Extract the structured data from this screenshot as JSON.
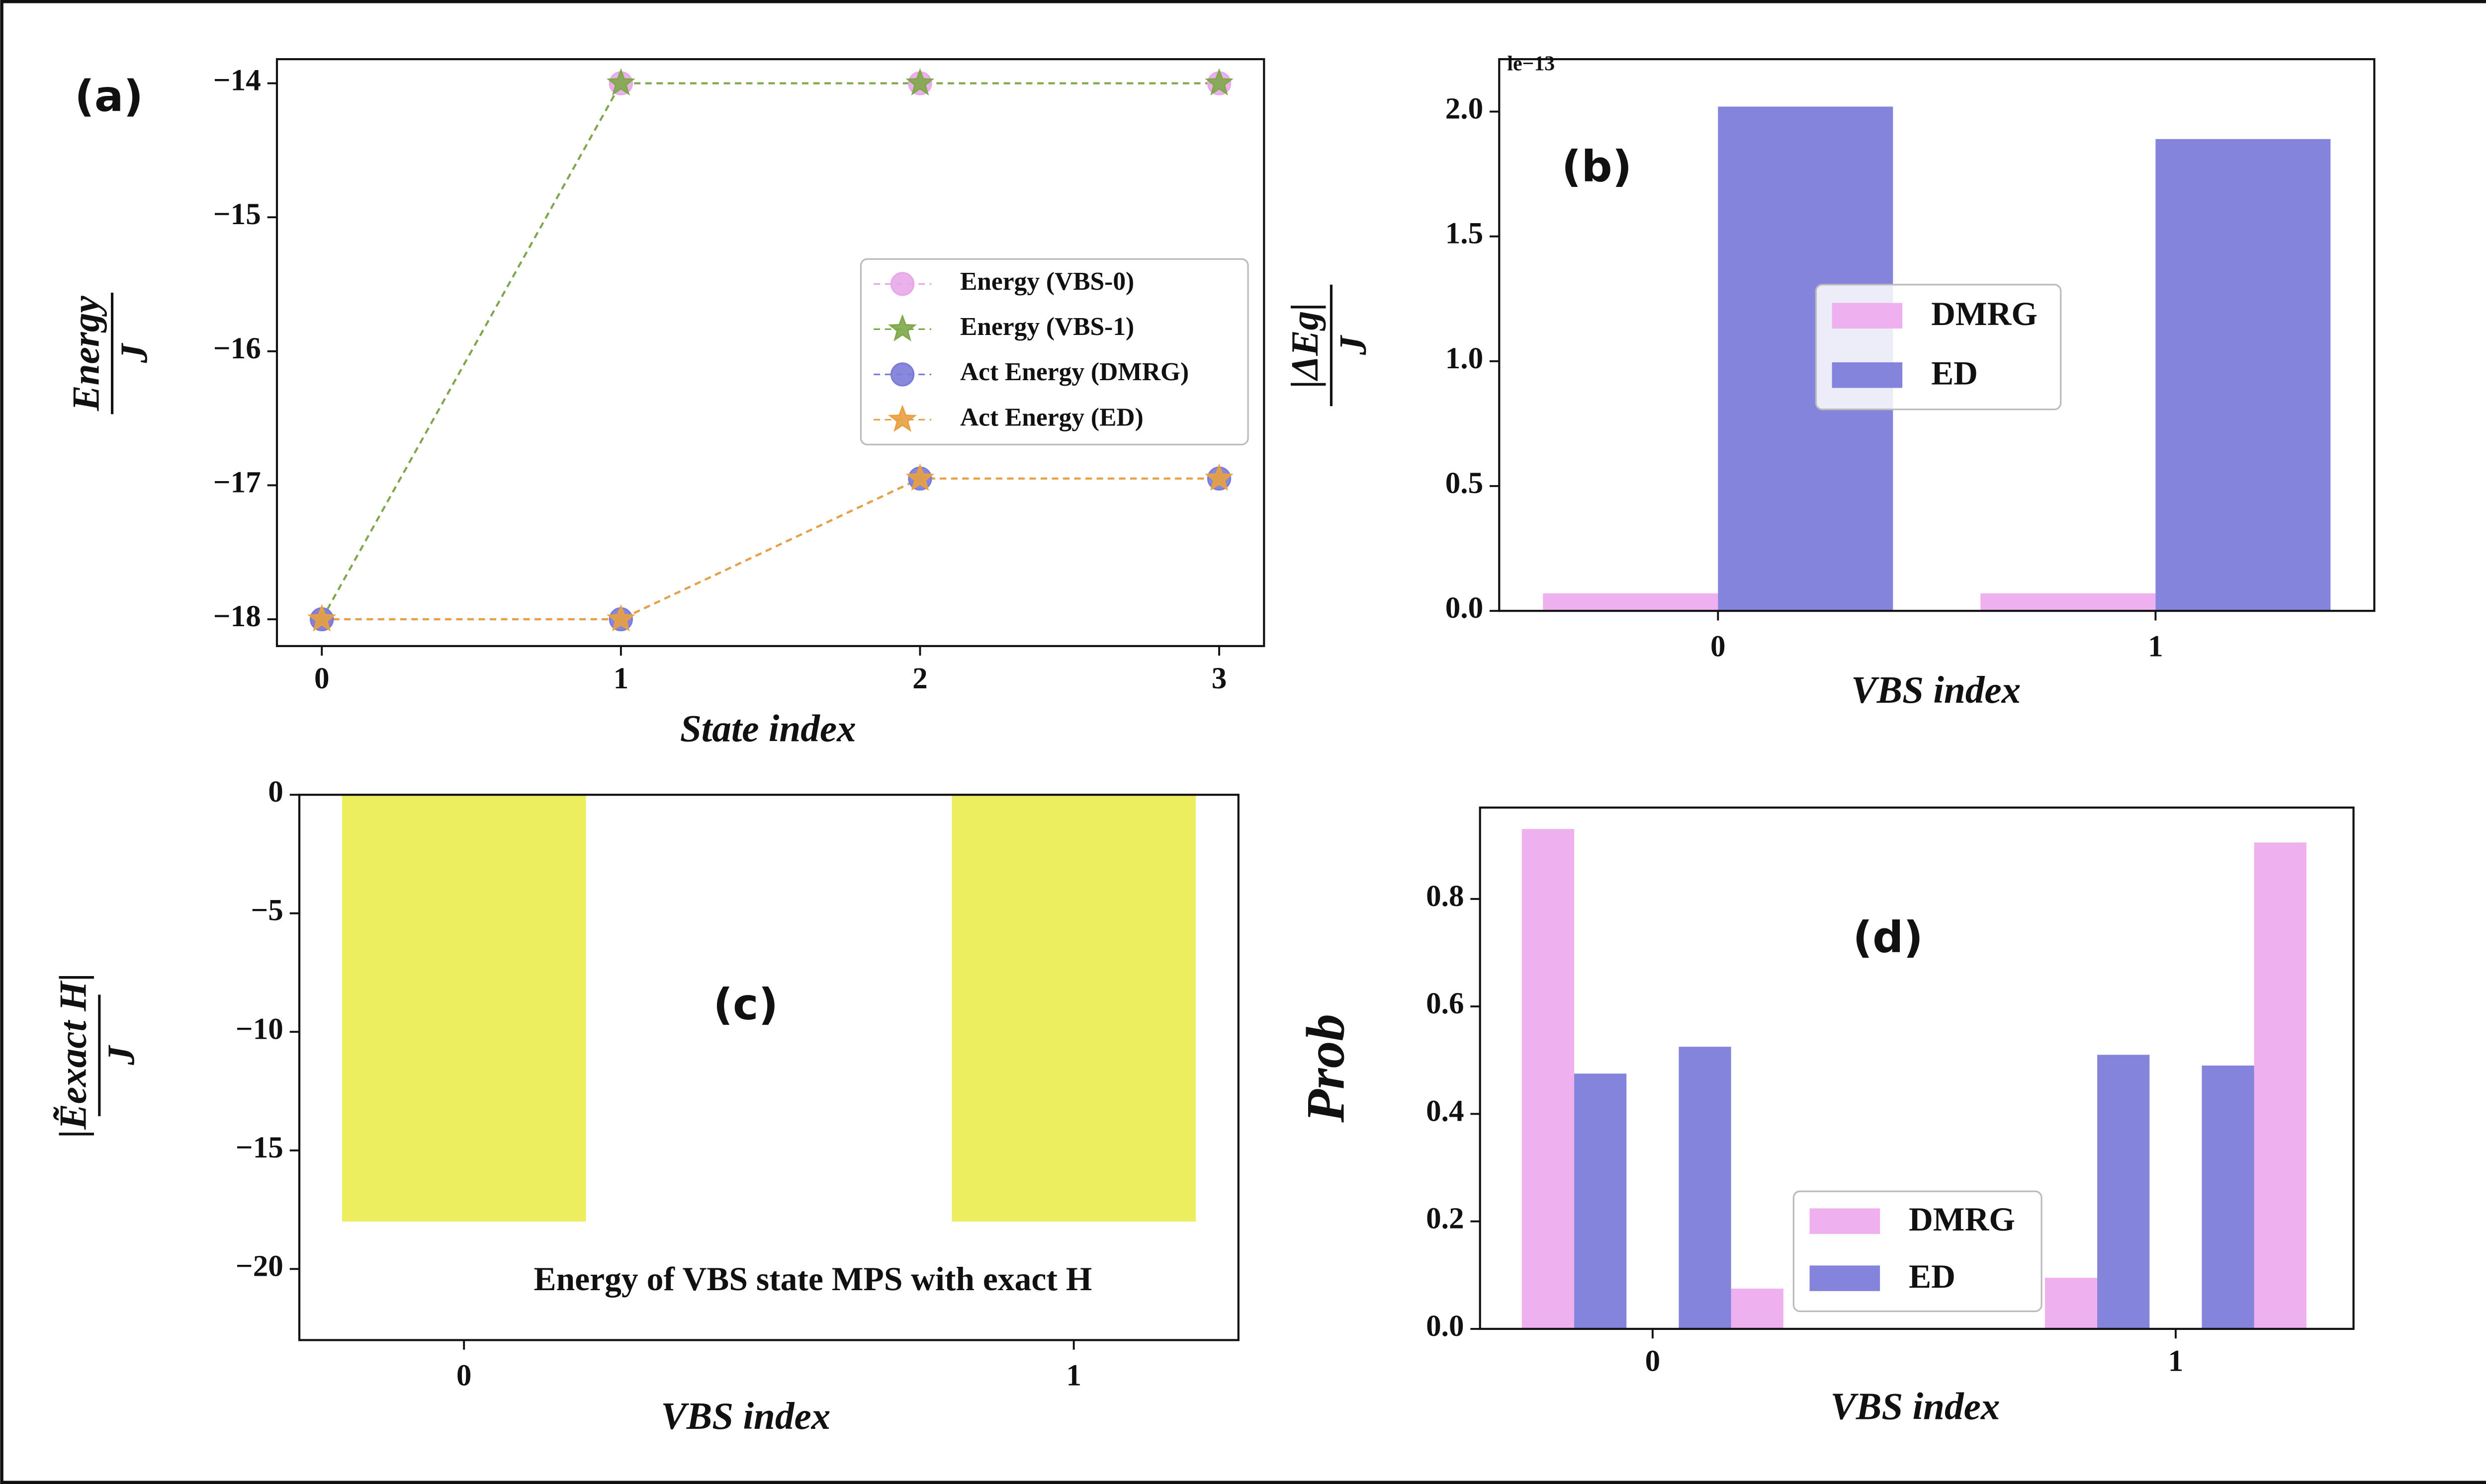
{
  "chart_data": [
    {
      "type": "line",
      "panel_label": "(a)",
      "xlabel": "State index",
      "ylabel": "Energy",
      "ylabel_denominator": "J",
      "x": [
        0,
        1,
        2,
        3
      ],
      "xlim": [
        -0.15,
        3.15
      ],
      "xticks": [
        0,
        1,
        2,
        3
      ],
      "ylim": [
        -18.2,
        -13.82
      ],
      "yticks": [
        {
          "value": -14,
          "label": "−14"
        },
        {
          "value": -15,
          "label": "−15"
        },
        {
          "value": -16,
          "label": "−16"
        },
        {
          "value": -17,
          "label": "−17"
        },
        {
          "value": -18,
          "label": "−18"
        }
      ],
      "legend": "center right",
      "series": [
        {
          "name": "Energy (VBS-0)",
          "color": "#e8a8e8",
          "marker": "circle",
          "values": [
            -18,
            -14,
            -14,
            -14
          ]
        },
        {
          "name": "Energy (VBS-1)",
          "color": "#7fa84a",
          "marker": "star",
          "values": [
            -18,
            -14,
            -14,
            -14
          ]
        },
        {
          "name": "Act Energy (DMRG)",
          "color": "#7b7bd8",
          "marker": "circle",
          "values": [
            -18,
            -18,
            -16.95,
            -16.95
          ]
        },
        {
          "name": "Act Energy (ED)",
          "color": "#e8a040",
          "marker": "star",
          "values": [
            -18,
            -18,
            -16.95,
            -16.95
          ]
        }
      ]
    },
    {
      "type": "bar",
      "panel_label": "(b)",
      "xlabel": "VBS index",
      "ylabel": "|ΔEg|",
      "ylabel_denominator": "J",
      "offset_text": "le−13",
      "categories": [
        "0",
        "1"
      ],
      "xlim": [
        -0.5,
        1.5
      ],
      "ylim": [
        0,
        2.21
      ],
      "yticks": [
        {
          "value": 0,
          "label": "0.0"
        },
        {
          "value": 0.5,
          "label": "0.5"
        },
        {
          "value": 1,
          "label": "1.0"
        },
        {
          "value": 1.5,
          "label": "1.5"
        },
        {
          "value": 2,
          "label": "2.0"
        }
      ],
      "legend": "center",
      "series": [
        {
          "name": "DMRG",
          "color": "#eeb0ee",
          "values": [
            0.07,
            0.07
          ]
        },
        {
          "name": "ED",
          "color": "#8484dc",
          "values": [
            2.02,
            1.89
          ]
        }
      ]
    },
    {
      "type": "bar",
      "panel_label": "(c)",
      "xlabel": "VBS index",
      "ylabel": "|Ẽexact H|",
      "ylabel_denominator": "J",
      "annotation": "Energy of VBS state MPS with exact H",
      "categories": [
        "0",
        "1"
      ],
      "xlim": [
        -0.27,
        1.27
      ],
      "ylim": [
        -23,
        0
      ],
      "yticks": [
        0,
        {
          "value": -5,
          "label": "−5"
        },
        {
          "value": -10,
          "label": "−10"
        },
        {
          "value": -15,
          "label": "−15"
        },
        {
          "value": -20,
          "label": "−20"
        }
      ],
      "series": [
        {
          "color": "#eded60",
          "values": [
            -18,
            -18
          ]
        }
      ]
    },
    {
      "type": "bar",
      "panel_label": "(d)",
      "xlabel": "VBS index",
      "ylabel": "Prob",
      "xlim": [
        -0.33,
        1.34
      ],
      "xticks": [
        0,
        1
      ],
      "ylim": [
        0,
        0.97
      ],
      "yticks": [
        {
          "value": 0,
          "label": "0.0"
        },
        {
          "value": 0.2,
          "label": "0.2"
        },
        {
          "value": 0.4,
          "label": "0.4"
        },
        {
          "value": 0.6,
          "label": "0.6"
        },
        {
          "value": 0.8,
          "label": "0.8"
        }
      ],
      "legend": "lower center",
      "series": [
        {
          "name": "DMRG",
          "color": "#eeb0ee",
          "x": [
            -0.2,
            0.2,
            0.8,
            1.2
          ],
          "values": [
            0.93,
            0.075,
            0.095,
            0.905
          ]
        },
        {
          "name": "ED",
          "color": "#8484dc",
          "x": [
            -0.1,
            0.1,
            0.9,
            1.1
          ],
          "values": [
            0.475,
            0.525,
            0.51,
            0.49
          ]
        }
      ]
    }
  ]
}
